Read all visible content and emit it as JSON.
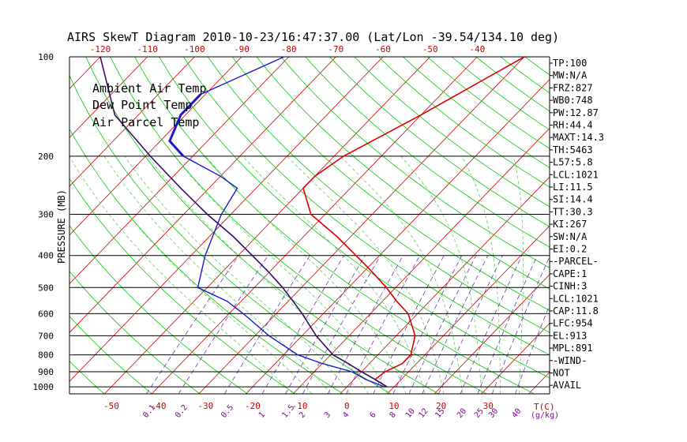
{
  "chart_data": {
    "type": "line",
    "title": "AIRS SkewT Diagram 2010-10-23/16:47:37.00 (Lat/Lon -39.54/134.10 deg)",
    "ylabel": "PRESSURE (MB)",
    "y_scale": "log",
    "ylim": [
      1050,
      100
    ],
    "pressure_ticks": [
      100,
      200,
      300,
      400,
      500,
      600,
      700,
      800,
      900,
      1000
    ],
    "top_temp_ticks": [
      -120,
      -110,
      -100,
      -90,
      -80,
      -70,
      -60,
      -50,
      -40
    ],
    "bottom_temp_ticks": [
      -50,
      -40,
      -30,
      -20,
      -10,
      0,
      10,
      20,
      30
    ],
    "bottom_axis_label": "T(C)",
    "mixing_ratio_ticks": [
      "0.1",
      "0.2",
      "0.5",
      "1",
      "1.5",
      "2",
      "3",
      "4",
      "6",
      "8",
      "10",
      "12",
      "15",
      "20",
      "25",
      "30",
      "40"
    ],
    "mixing_ratio_label": "(g/kg)",
    "legend": [
      {
        "label": "Ambient Air Temp",
        "color": "#dd0000"
      },
      {
        "label": "Dew Point Temp",
        "color": "#1a1acc"
      },
      {
        "label": "Air Parcel Temp",
        "color": "#3a0a6a"
      }
    ],
    "series": [
      {
        "name": "Ambient Air Temp",
        "color": "#dd0000",
        "points": [
          [
            1000,
            8.5
          ],
          [
            950,
            4.5
          ],
          [
            900,
            5
          ],
          [
            850,
            7
          ],
          [
            800,
            7
          ],
          [
            700,
            4
          ],
          [
            600,
            -2
          ],
          [
            550,
            -7
          ],
          [
            500,
            -12
          ],
          [
            450,
            -18
          ],
          [
            400,
            -25
          ],
          [
            350,
            -33
          ],
          [
            300,
            -43
          ],
          [
            250,
            -50
          ],
          [
            230,
            -50
          ],
          [
            200,
            -48
          ],
          [
            150,
            -40
          ],
          [
            100,
            -30
          ]
        ]
      },
      {
        "name": "Dew Point Temp",
        "color": "#1a1acc",
        "points": [
          [
            1000,
            8.0
          ],
          [
            950,
            2.5
          ],
          [
            900,
            -2
          ],
          [
            850,
            -10
          ],
          [
            800,
            -17
          ],
          [
            700,
            -27
          ],
          [
            600,
            -37
          ],
          [
            550,
            -43
          ],
          [
            500,
            -52
          ],
          [
            400,
            -57
          ],
          [
            300,
            -62
          ],
          [
            250,
            -64
          ],
          [
            230,
            -70
          ],
          [
            200,
            -82
          ],
          [
            180,
            -88
          ],
          [
            150,
            -91
          ],
          [
            130,
            -91
          ],
          [
            100,
            -81
          ]
        ]
      },
      {
        "name": "Air Parcel Temp",
        "color": "#3a0a6a",
        "points": [
          [
            1000,
            8.5
          ],
          [
            950,
            4.5
          ],
          [
            900,
            0
          ],
          [
            850,
            -4.5
          ],
          [
            800,
            -9.5
          ],
          [
            700,
            -17
          ],
          [
            600,
            -24.5
          ],
          [
            550,
            -29
          ],
          [
            500,
            -34
          ],
          [
            450,
            -40
          ],
          [
            400,
            -47
          ],
          [
            350,
            -55
          ],
          [
            300,
            -65
          ],
          [
            250,
            -76
          ],
          [
            200,
            -89
          ],
          [
            150,
            -105
          ],
          [
            100,
            -120
          ]
        ]
      }
    ],
    "indices": [
      "TP:100",
      "MW:N/A",
      "FRZ:827",
      "WB0:748",
      "PW:12.87",
      "RH:44.4",
      "MAXT:14.3",
      "TH:5463",
      "L57:5.8",
      "LCL:1021",
      "LI:11.5",
      "SI:14.4",
      "TT:30.3",
      "KI:267",
      "SW:N/A",
      "EI:0.2",
      "-PARCEL-",
      "CAPE:1",
      "CINH:3",
      "LCL:1021",
      "CAP:11.8",
      "LFC:954",
      "EL:913",
      "MPL:891",
      "-WIND-",
      "NOT",
      "AVAIL"
    ]
  },
  "colors": {
    "isotherm": "#cc0000",
    "dry_adiabat": "#00cc00",
    "moist_adiabat": "#66cc66",
    "mixing_ratio": "#6a3ab0",
    "isobar": "#000000"
  }
}
